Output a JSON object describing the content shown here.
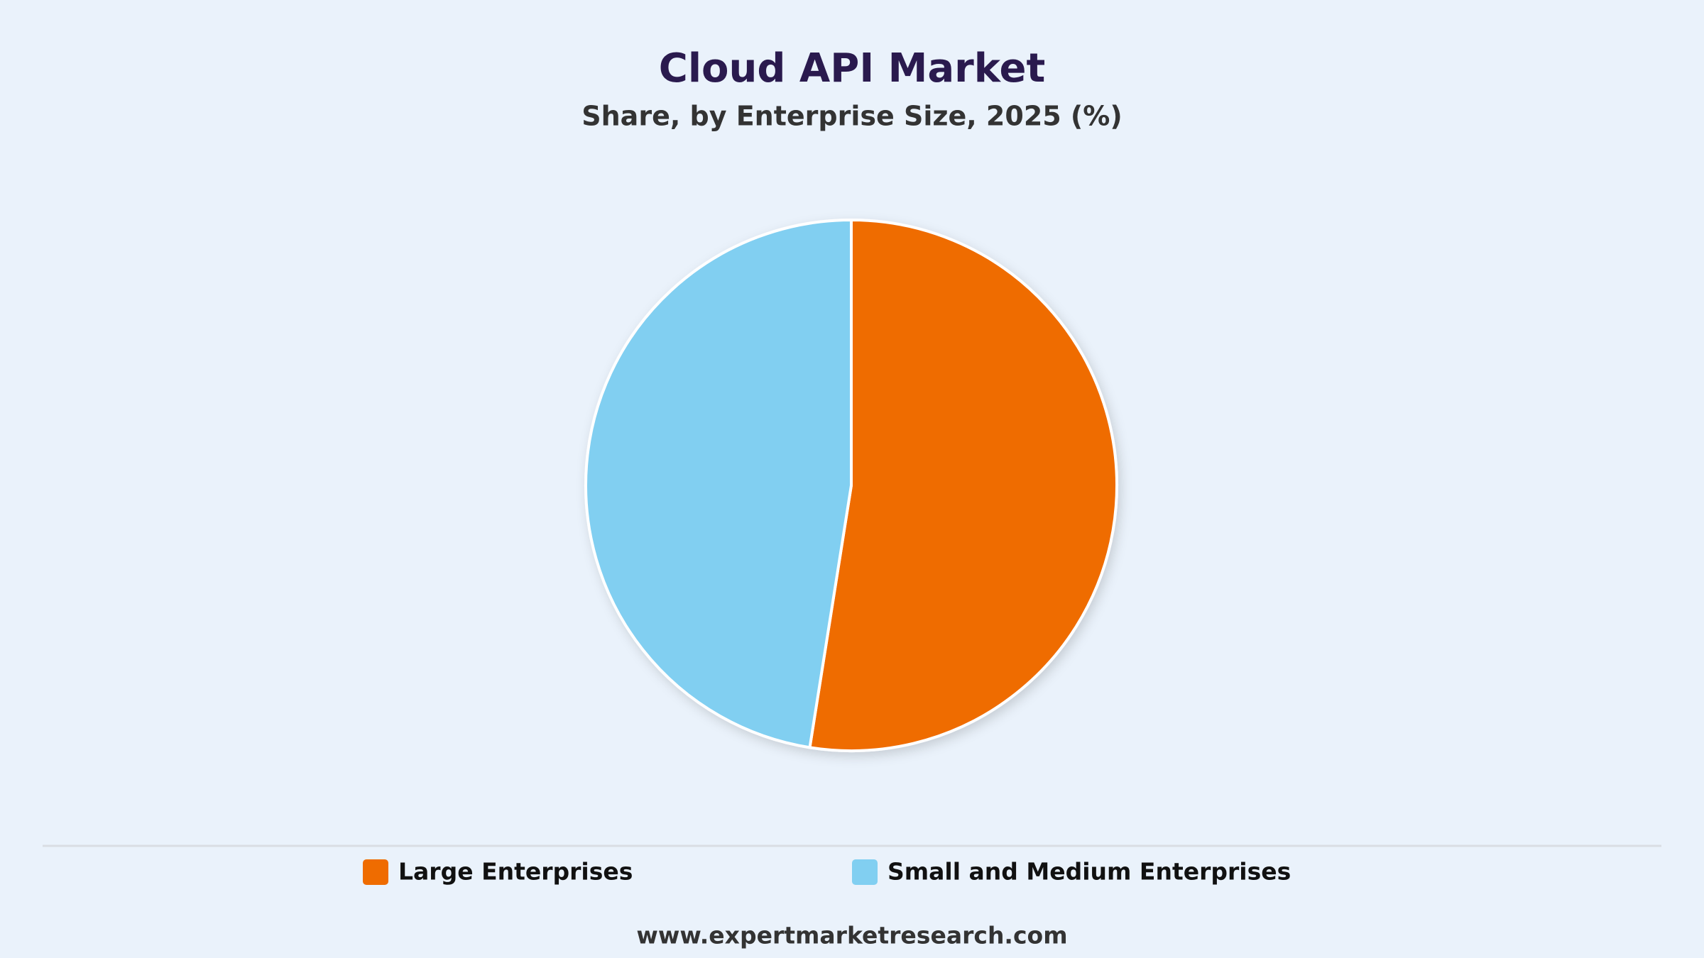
{
  "chart_data": {
    "type": "pie",
    "title": "Cloud API Market",
    "subtitle": "Share, by Enterprise Size, 2025 (%)",
    "categories": [
      "Large Enterprises",
      "Small and Medium Enterprises"
    ],
    "values": [
      52.5,
      47.5
    ],
    "colors": [
      "#ef6c00",
      "#81cff1"
    ],
    "legend": "bottom"
  },
  "footer": "www.expertmarketresearch.com"
}
